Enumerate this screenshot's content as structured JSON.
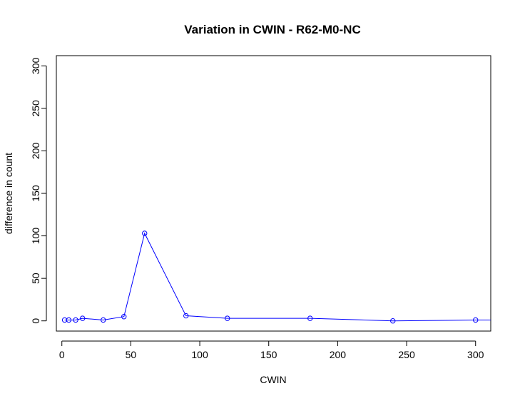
{
  "chart_data": {
    "type": "line",
    "title": "Variation in CWIN - R62-M0-NC",
    "xlabel": "CWIN",
    "ylabel": "difference in count",
    "xlim": [
      -4,
      311
    ],
    "ylim": [
      -12,
      312
    ],
    "x_ticks": [
      0,
      50,
      100,
      150,
      200,
      250,
      300
    ],
    "y_ticks": [
      0,
      50,
      100,
      150,
      200,
      250,
      300
    ],
    "grid": false,
    "line_color": "#0000FF",
    "marker": "open-circle",
    "series": [
      {
        "x": [
          2,
          5,
          10,
          15,
          30,
          45,
          60,
          90,
          120,
          180,
          240,
          300,
          320
        ],
        "y": [
          1,
          1,
          1,
          3,
          1,
          5,
          103,
          6,
          3,
          3,
          0,
          1,
          1
        ]
      }
    ]
  }
}
